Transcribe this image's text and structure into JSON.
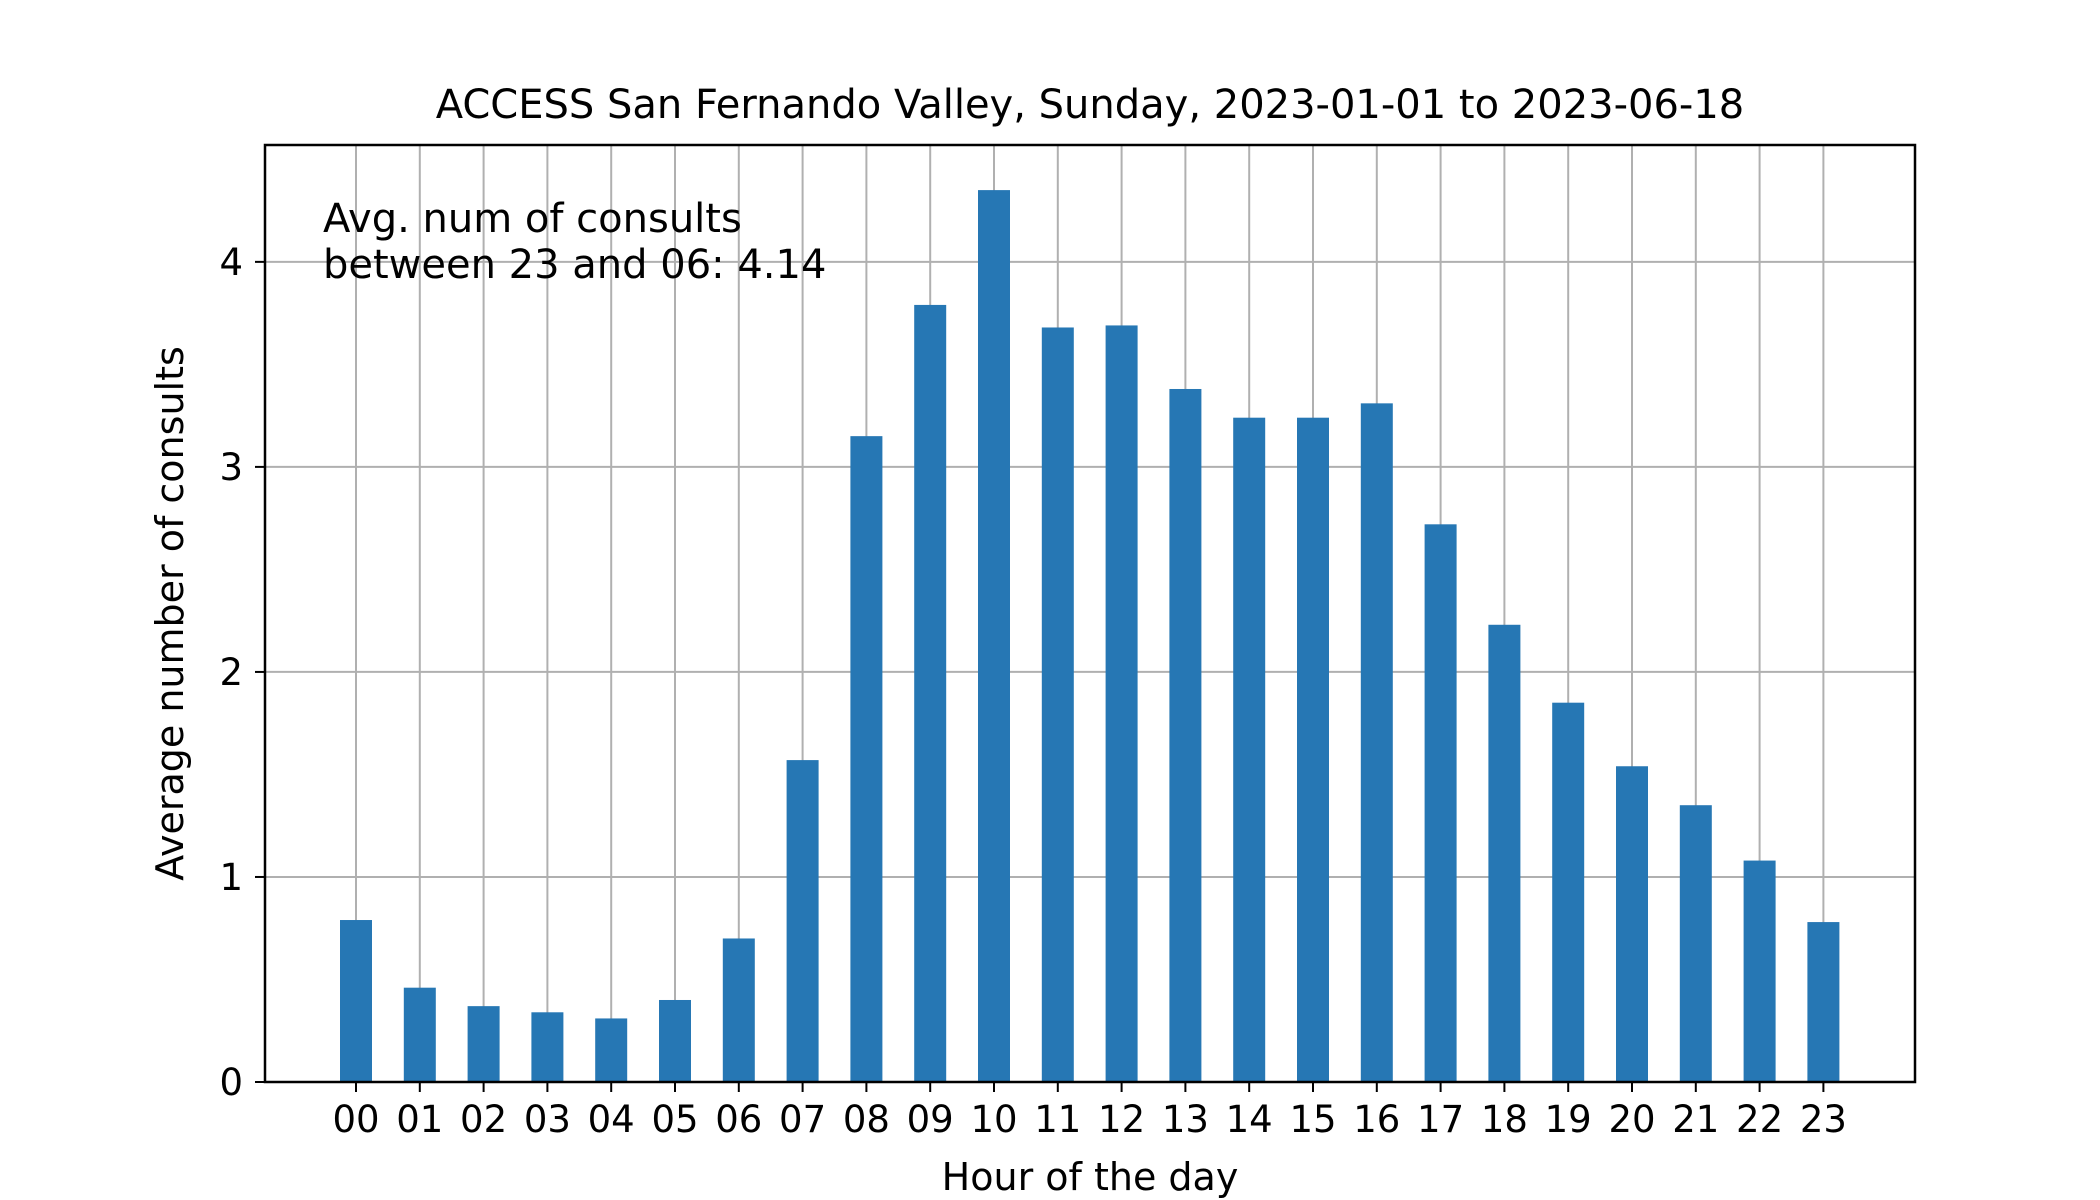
{
  "chart_data": {
    "type": "bar",
    "title": "ACCESS San Fernando Valley, Sunday, 2023-01-01 to 2023-06-18",
    "xlabel": "Hour of the day",
    "ylabel": "Average number of consults",
    "categories": [
      "00",
      "01",
      "02",
      "03",
      "04",
      "05",
      "06",
      "07",
      "08",
      "09",
      "10",
      "11",
      "12",
      "13",
      "14",
      "15",
      "16",
      "17",
      "18",
      "19",
      "20",
      "21",
      "22",
      "23"
    ],
    "values": [
      0.79,
      0.46,
      0.37,
      0.34,
      0.31,
      0.4,
      0.7,
      1.57,
      3.15,
      3.79,
      4.35,
      3.68,
      3.69,
      3.38,
      3.24,
      3.24,
      3.31,
      2.72,
      2.23,
      1.85,
      1.54,
      1.35,
      1.08,
      0.78
    ],
    "ylim": [
      0,
      4.57
    ],
    "yticks": [
      0,
      1,
      2,
      3,
      4
    ],
    "grid": true,
    "bar_color": "#2677b4",
    "annotation": [
      "Avg. num of consults",
      "between 23 and 06: 4.14"
    ]
  }
}
